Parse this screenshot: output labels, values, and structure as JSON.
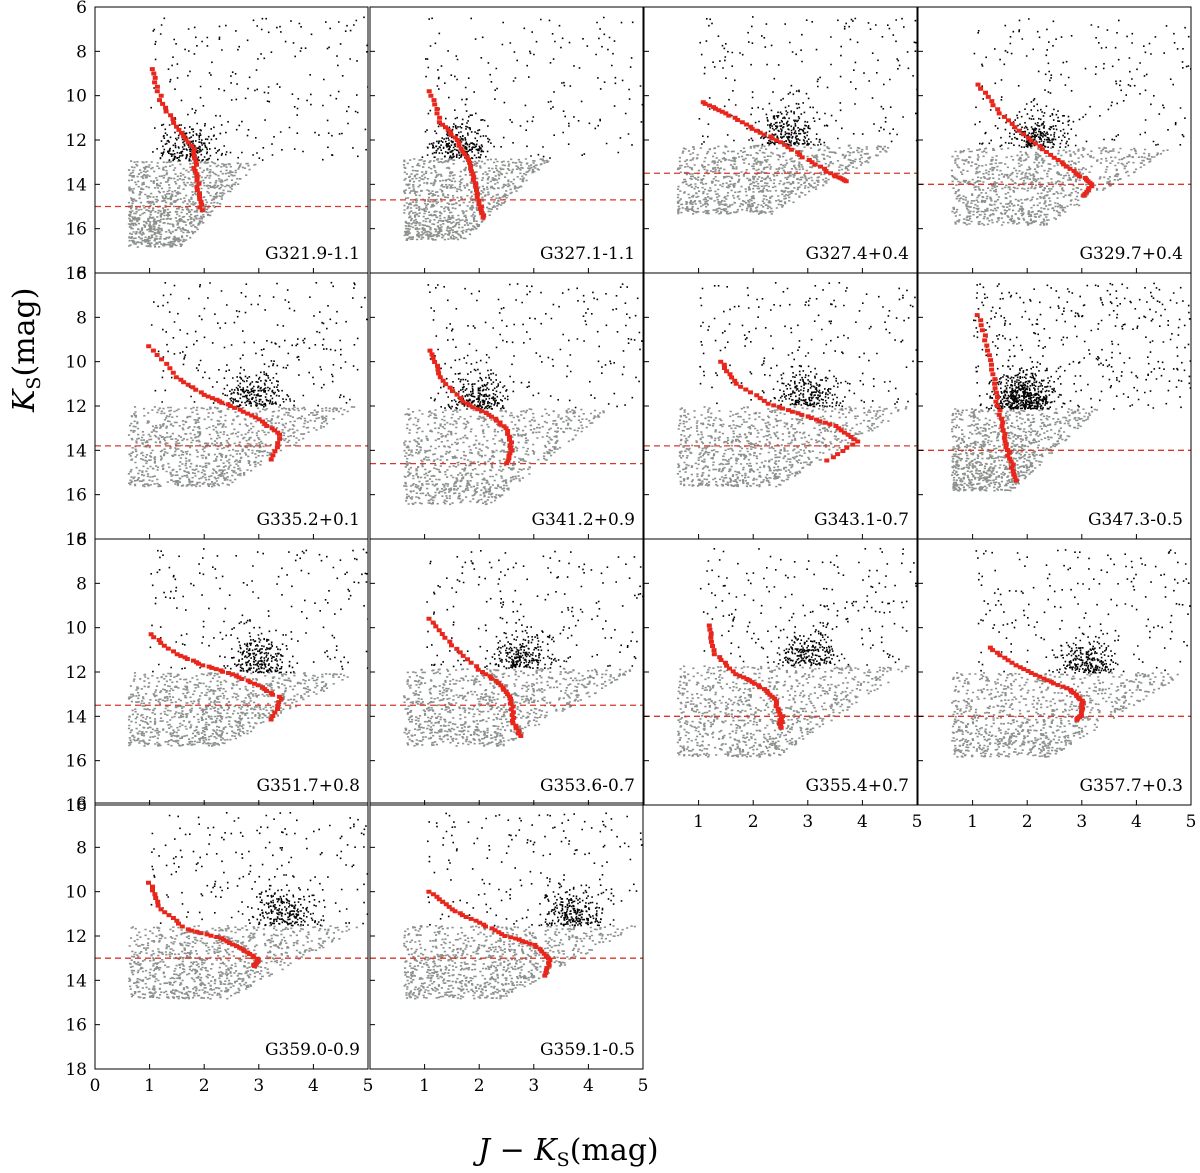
{
  "figure": {
    "ylabel_main": "K",
    "ylabel_sub": "S",
    "ylabel_unit": "(mag)",
    "xlabel_main": "J − K",
    "xlabel_sub": "S",
    "xlabel_unit": "(mag)"
  },
  "chart_data": {
    "type": "scatter",
    "grid": false,
    "xlim": [
      0,
      5
    ],
    "ylim": [
      18,
      6
    ],
    "xticks": [
      0,
      1,
      2,
      3,
      4,
      5
    ],
    "yticks": [
      6,
      8,
      10,
      12,
      14,
      16,
      18
    ],
    "xlabel": "J − KS(mag)",
    "ylabel": "KS(mag)",
    "colors": {
      "faint_stars": "#8c918d",
      "bright_stars": "#000000",
      "red_clump": "#e8261c",
      "isochrone": "#cc2a1f",
      "completeness": "#d9372b"
    },
    "panels": [
      {
        "name": "G321.9-1.1",
        "limit": 15.0,
        "split": 12.9,
        "rc": [
          [
            1.05,
            8.8
          ],
          [
            1.2,
            10.2
          ],
          [
            1.5,
            11.4
          ],
          [
            1.8,
            12.4
          ],
          [
            1.85,
            13.4
          ],
          [
            1.9,
            14.4
          ],
          [
            1.95,
            15.3
          ]
        ],
        "clumpColor": 1.7,
        "wedge": [
          0.4,
          3.0
        ],
        "curveShift": 0.0,
        "slope": "steep"
      },
      {
        "name": "G327.1-1.1",
        "limit": 14.7,
        "split": 12.8,
        "rc": [
          [
            1.1,
            9.8
          ],
          [
            1.3,
            11.2
          ],
          [
            1.6,
            12.0
          ],
          [
            1.8,
            12.9
          ],
          [
            1.9,
            13.8
          ],
          [
            2.0,
            14.9
          ],
          [
            2.1,
            15.6
          ]
        ],
        "clumpColor": 1.6,
        "wedge": [
          0.4,
          3.3
        ],
        "curveShift": 0.2,
        "slope": "steep"
      },
      {
        "name": "G327.4+0.4",
        "limit": 13.5,
        "split": 12.2,
        "rc": [
          [
            1.1,
            10.3
          ],
          [
            1.5,
            10.8
          ],
          [
            2.0,
            11.5
          ],
          [
            2.5,
            12.1
          ],
          [
            3.0,
            12.9
          ],
          [
            3.5,
            13.6
          ],
          [
            3.7,
            13.9
          ]
        ],
        "clumpColor": 2.6,
        "wedge": [
          0.4,
          4.7
        ],
        "curveShift": 0.6,
        "slope": "shallow"
      },
      {
        "name": "G329.7+0.4",
        "limit": 14.0,
        "split": 12.3,
        "rc": [
          [
            1.1,
            9.5
          ],
          [
            1.5,
            10.8
          ],
          [
            2.0,
            11.9
          ],
          [
            2.5,
            12.8
          ],
          [
            2.9,
            13.5
          ],
          [
            3.2,
            14.0
          ],
          [
            3.0,
            14.6
          ]
        ],
        "clumpColor": 2.2,
        "wedge": [
          0.4,
          4.7
        ],
        "curveShift": 0.3,
        "slope": "mid"
      },
      {
        "name": "G335.2+0.1",
        "limit": 13.8,
        "split": 12.0,
        "rc": [
          [
            1.0,
            9.3
          ],
          [
            1.5,
            10.7
          ],
          [
            2.0,
            11.5
          ],
          [
            2.5,
            12.0
          ],
          [
            3.0,
            12.6
          ],
          [
            3.4,
            13.3
          ],
          [
            3.2,
            14.6
          ]
        ],
        "clumpColor": 2.9,
        "wedge": [
          0.4,
          4.8
        ],
        "curveShift": 0.6,
        "slope": "shallow"
      },
      {
        "name": "G341.2+0.9",
        "limit": 14.6,
        "split": 12.1,
        "rc": [
          [
            1.1,
            9.5
          ],
          [
            1.3,
            10.7
          ],
          [
            1.7,
            11.8
          ],
          [
            2.2,
            12.4
          ],
          [
            2.5,
            13.0
          ],
          [
            2.6,
            13.9
          ],
          [
            2.5,
            14.7
          ]
        ],
        "clumpColor": 2.0,
        "wedge": [
          0.4,
          4.4
        ],
        "curveShift": 0.3,
        "slope": "mid"
      },
      {
        "name": "G343.1-0.7",
        "limit": 13.8,
        "split": 12.0,
        "rc": [
          [
            1.4,
            10.0
          ],
          [
            1.7,
            11.0
          ],
          [
            2.3,
            11.9
          ],
          [
            2.9,
            12.4
          ],
          [
            3.5,
            12.9
          ],
          [
            3.9,
            13.6
          ],
          [
            3.3,
            14.6
          ]
        ],
        "clumpColor": 3.0,
        "wedge": [
          0.4,
          4.9
        ],
        "curveShift": 0.6,
        "slope": "shallow"
      },
      {
        "name": "G347.3-0.5",
        "limit": 14.0,
        "split": 12.1,
        "rc": [
          [
            1.1,
            7.9
          ],
          [
            1.3,
            9.5
          ],
          [
            1.4,
            11.0
          ],
          [
            1.5,
            12.4
          ],
          [
            1.6,
            13.6
          ],
          [
            1.7,
            14.5
          ],
          [
            1.8,
            15.5
          ]
        ],
        "clumpColor": 1.9,
        "wedge": [
          0.4,
          3.3
        ],
        "curveShift": 0.0,
        "slope": "steep"
      },
      {
        "name": "G351.7+0.8",
        "limit": 13.5,
        "split": 12.0,
        "rc": [
          [
            1.0,
            10.3
          ],
          [
            1.5,
            11.2
          ],
          [
            2.0,
            11.7
          ],
          [
            2.5,
            12.1
          ],
          [
            3.0,
            12.6
          ],
          [
            3.4,
            13.2
          ],
          [
            3.2,
            14.3
          ]
        ],
        "clumpColor": 3.0,
        "wedge": [
          0.4,
          4.8
        ],
        "curveShift": 0.5,
        "slope": "shallow"
      },
      {
        "name": "G353.6-0.7",
        "limit": 13.5,
        "split": 11.8,
        "rc": [
          [
            1.1,
            9.6
          ],
          [
            1.5,
            10.8
          ],
          [
            2.0,
            11.9
          ],
          [
            2.4,
            12.6
          ],
          [
            2.6,
            13.3
          ],
          [
            2.6,
            14.2
          ],
          [
            2.8,
            15.0
          ]
        ],
        "clumpColor": 2.8,
        "wedge": [
          0.4,
          4.9
        ],
        "curveShift": 0.3,
        "slope": "mid"
      },
      {
        "name": "G355.4+0.7",
        "limit": 14.0,
        "split": 11.7,
        "rc": [
          [
            1.2,
            9.9
          ],
          [
            1.3,
            11.2
          ],
          [
            1.7,
            12.1
          ],
          [
            2.1,
            12.6
          ],
          [
            2.4,
            13.2
          ],
          [
            2.5,
            14.0
          ],
          [
            2.5,
            14.6
          ]
        ],
        "clumpColor": 3.0,
        "wedge": [
          0.4,
          4.9
        ],
        "curveShift": 0.3,
        "slope": "mid"
      },
      {
        "name": "G357.7+0.3",
        "limit": 14.0,
        "split": 12.0,
        "rc": [
          [
            1.3,
            10.9
          ],
          [
            1.8,
            11.7
          ],
          [
            2.3,
            12.3
          ],
          [
            2.8,
            12.8
          ],
          [
            3.0,
            13.3
          ],
          [
            3.0,
            13.9
          ],
          [
            2.9,
            14.2
          ]
        ],
        "clumpColor": 3.1,
        "wedge": [
          0.4,
          4.9
        ],
        "curveShift": 0.4,
        "slope": "mid"
      },
      {
        "name": "G359.0-0.9",
        "limit": 13.0,
        "split": 11.5,
        "rc": [
          [
            1.0,
            9.6
          ],
          [
            1.2,
            10.8
          ],
          [
            1.7,
            11.7
          ],
          [
            2.3,
            12.1
          ],
          [
            2.7,
            12.6
          ],
          [
            3.0,
            13.1
          ],
          [
            2.9,
            13.4
          ]
        ],
        "clumpColor": 3.5,
        "wedge": [
          0.4,
          4.9
        ],
        "curveShift": 0.5,
        "slope": "shallow"
      },
      {
        "name": "G359.1-0.5",
        "limit": 13.0,
        "split": 11.5,
        "rc": [
          [
            1.1,
            10.0
          ],
          [
            1.5,
            10.8
          ],
          [
            2.0,
            11.4
          ],
          [
            2.5,
            12.0
          ],
          [
            3.0,
            12.4
          ],
          [
            3.3,
            13.1
          ],
          [
            3.2,
            13.9
          ]
        ],
        "clumpColor": 3.7,
        "wedge": [
          0.4,
          4.9
        ],
        "curveShift": 0.6,
        "slope": "shallow"
      }
    ]
  }
}
